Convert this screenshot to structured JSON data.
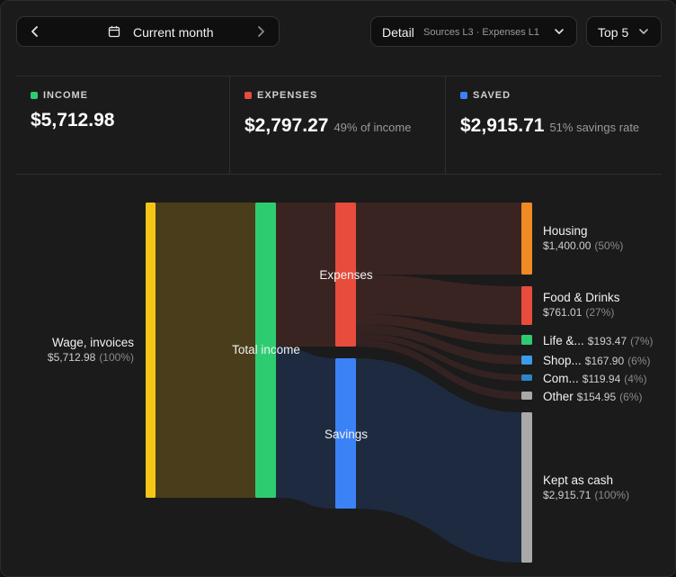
{
  "toolbar": {
    "period_label": "Current month",
    "detail_label": "Detail",
    "detail_sub": "Sources L3 · Expenses L1",
    "top_label": "Top 5"
  },
  "stats": {
    "income": {
      "label": "INCOME",
      "value": "$5,712.98",
      "color": "#2ecc71"
    },
    "expenses": {
      "label": "EXPENSES",
      "value": "$2,797.27",
      "note": "49% of income",
      "color": "#e74c3c"
    },
    "saved": {
      "label": "SAVED",
      "value": "$2,915.71",
      "note": "51% savings rate",
      "color": "#3b82f6"
    }
  },
  "sankey": {
    "source": {
      "name": "Wage, invoices",
      "amount": "$5,712.98",
      "pct": "(100%)",
      "color": "#f5c518"
    },
    "total": {
      "name": "Total income",
      "color": "#2ecc71"
    },
    "expenses": {
      "name": "Expenses",
      "color": "#e74c3c"
    },
    "savings": {
      "name": "Savings",
      "color": "#3b82f6"
    },
    "targets": [
      {
        "name": "Housing",
        "amount": "$1,400.00",
        "pct": "(50%)",
        "color": "#f08a24"
      },
      {
        "name": "Food & Drinks",
        "amount": "$761.01",
        "pct": "(27%)",
        "color": "#e74c3c"
      },
      {
        "name": "Life &...",
        "amount": "$193.47",
        "pct": "(7%)",
        "color": "#2ecc71"
      },
      {
        "name": "Shop...",
        "amount": "$167.90",
        "pct": "(6%)",
        "color": "#3b9be8"
      },
      {
        "name": "Com...",
        "amount": "$119.94",
        "pct": "(4%)",
        "color": "#2a86c8"
      },
      {
        "name": "Other",
        "amount": "$154.95",
        "pct": "(6%)",
        "color": "#a9a9a9"
      },
      {
        "name": "Kept as cash",
        "amount": "$2,915.71",
        "pct": "(100%)",
        "color": "#a9a9a9"
      }
    ]
  }
}
